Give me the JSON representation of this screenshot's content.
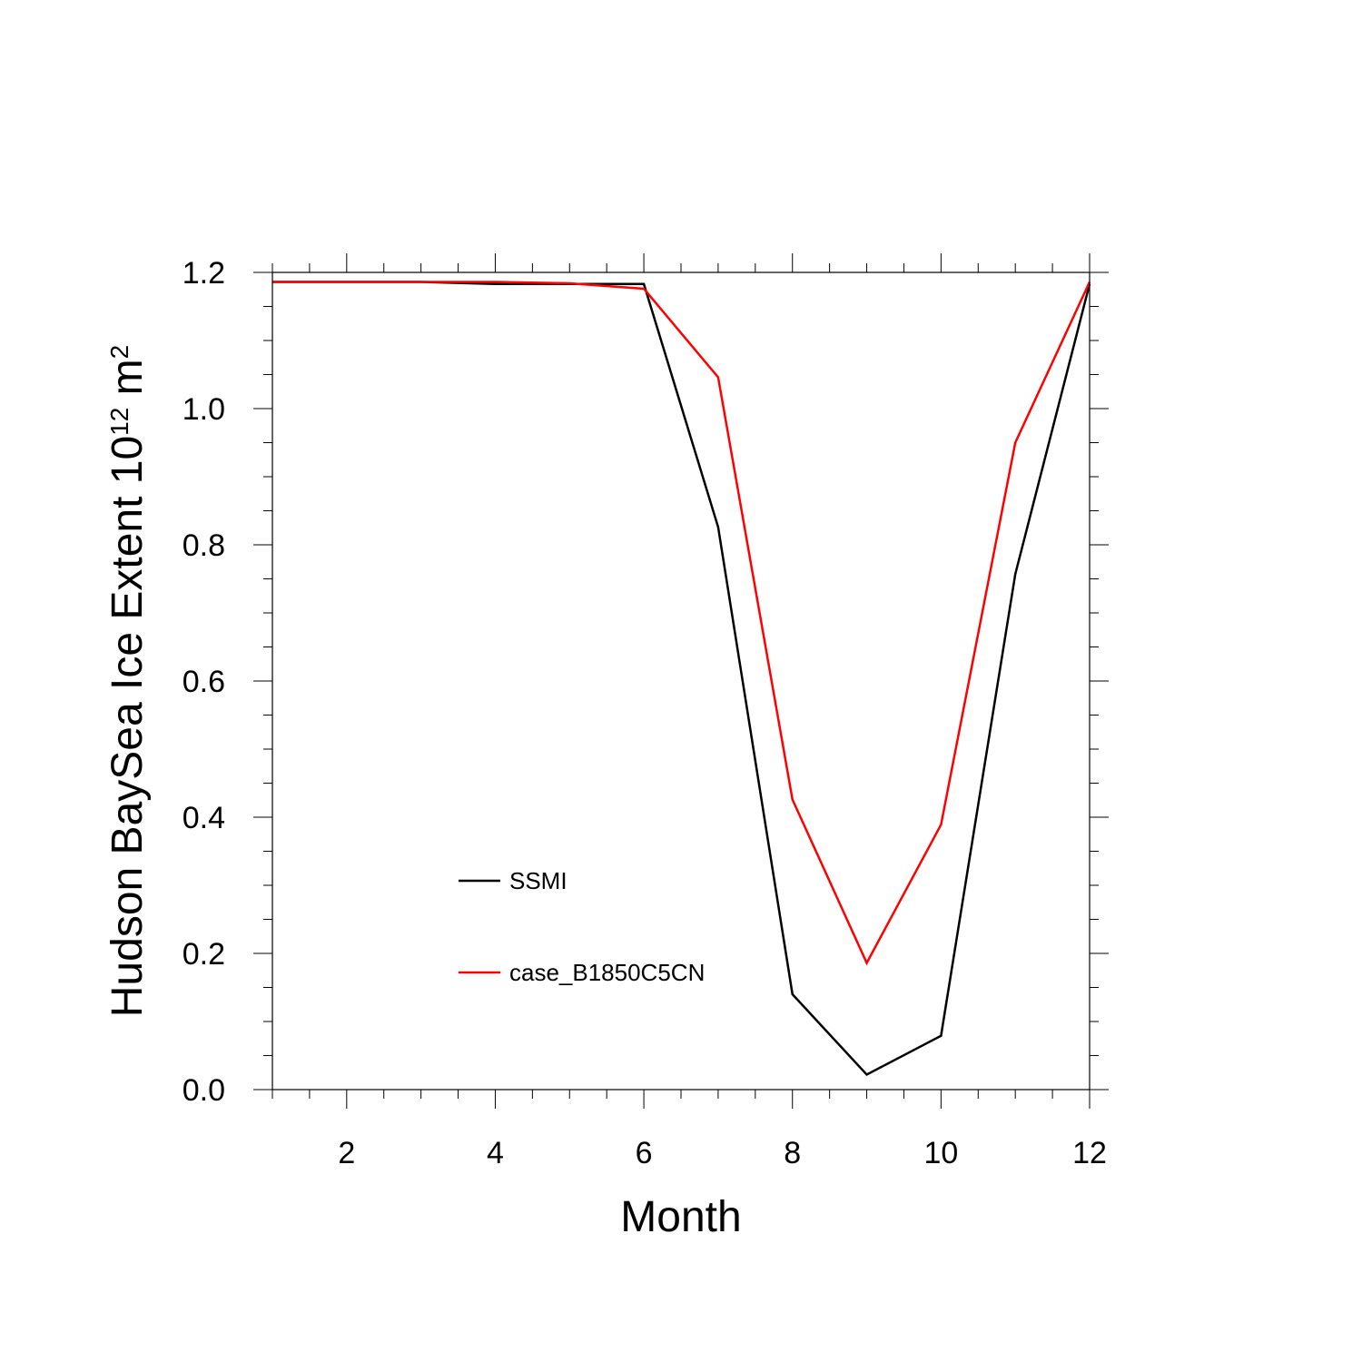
{
  "chart_data": {
    "type": "line",
    "title": "",
    "xlabel": "Month",
    "ylabel": {
      "text": "Hudson BaySea Ice Extent 10",
      "superscript": "12",
      "unit": " m",
      "unit_superscript": "2"
    },
    "xlim": [
      1,
      12
    ],
    "ylim": [
      0.0,
      1.2
    ],
    "xticks": [
      2,
      4,
      6,
      8,
      10,
      12
    ],
    "xtick_labels": [
      "2",
      "4",
      "6",
      "8",
      "10",
      "12"
    ],
    "yticks": [
      0.0,
      0.2,
      0.4,
      0.6,
      0.8,
      1.0,
      1.2
    ],
    "ytick_labels": [
      "0.0",
      "0.2",
      "0.4",
      "0.6",
      "0.8",
      "1.0",
      "1.2"
    ],
    "grid": false,
    "legend_position": "lower-left inside",
    "x": [
      1,
      2,
      3,
      4,
      5,
      6,
      7,
      8,
      9,
      10,
      11,
      12
    ],
    "series": [
      {
        "name": "SSMI",
        "color": "#000000",
        "values": [
          1.186,
          1.186,
          1.186,
          1.183,
          1.183,
          1.183,
          0.826,
          0.14,
          0.022,
          0.079,
          0.757,
          1.183
        ]
      },
      {
        "name": "case_B1850C5CN",
        "color": "#ff0000",
        "values": [
          1.186,
          1.186,
          1.186,
          1.186,
          1.184,
          1.176,
          1.046,
          0.426,
          0.186,
          0.389,
          0.95,
          1.186
        ]
      }
    ]
  }
}
